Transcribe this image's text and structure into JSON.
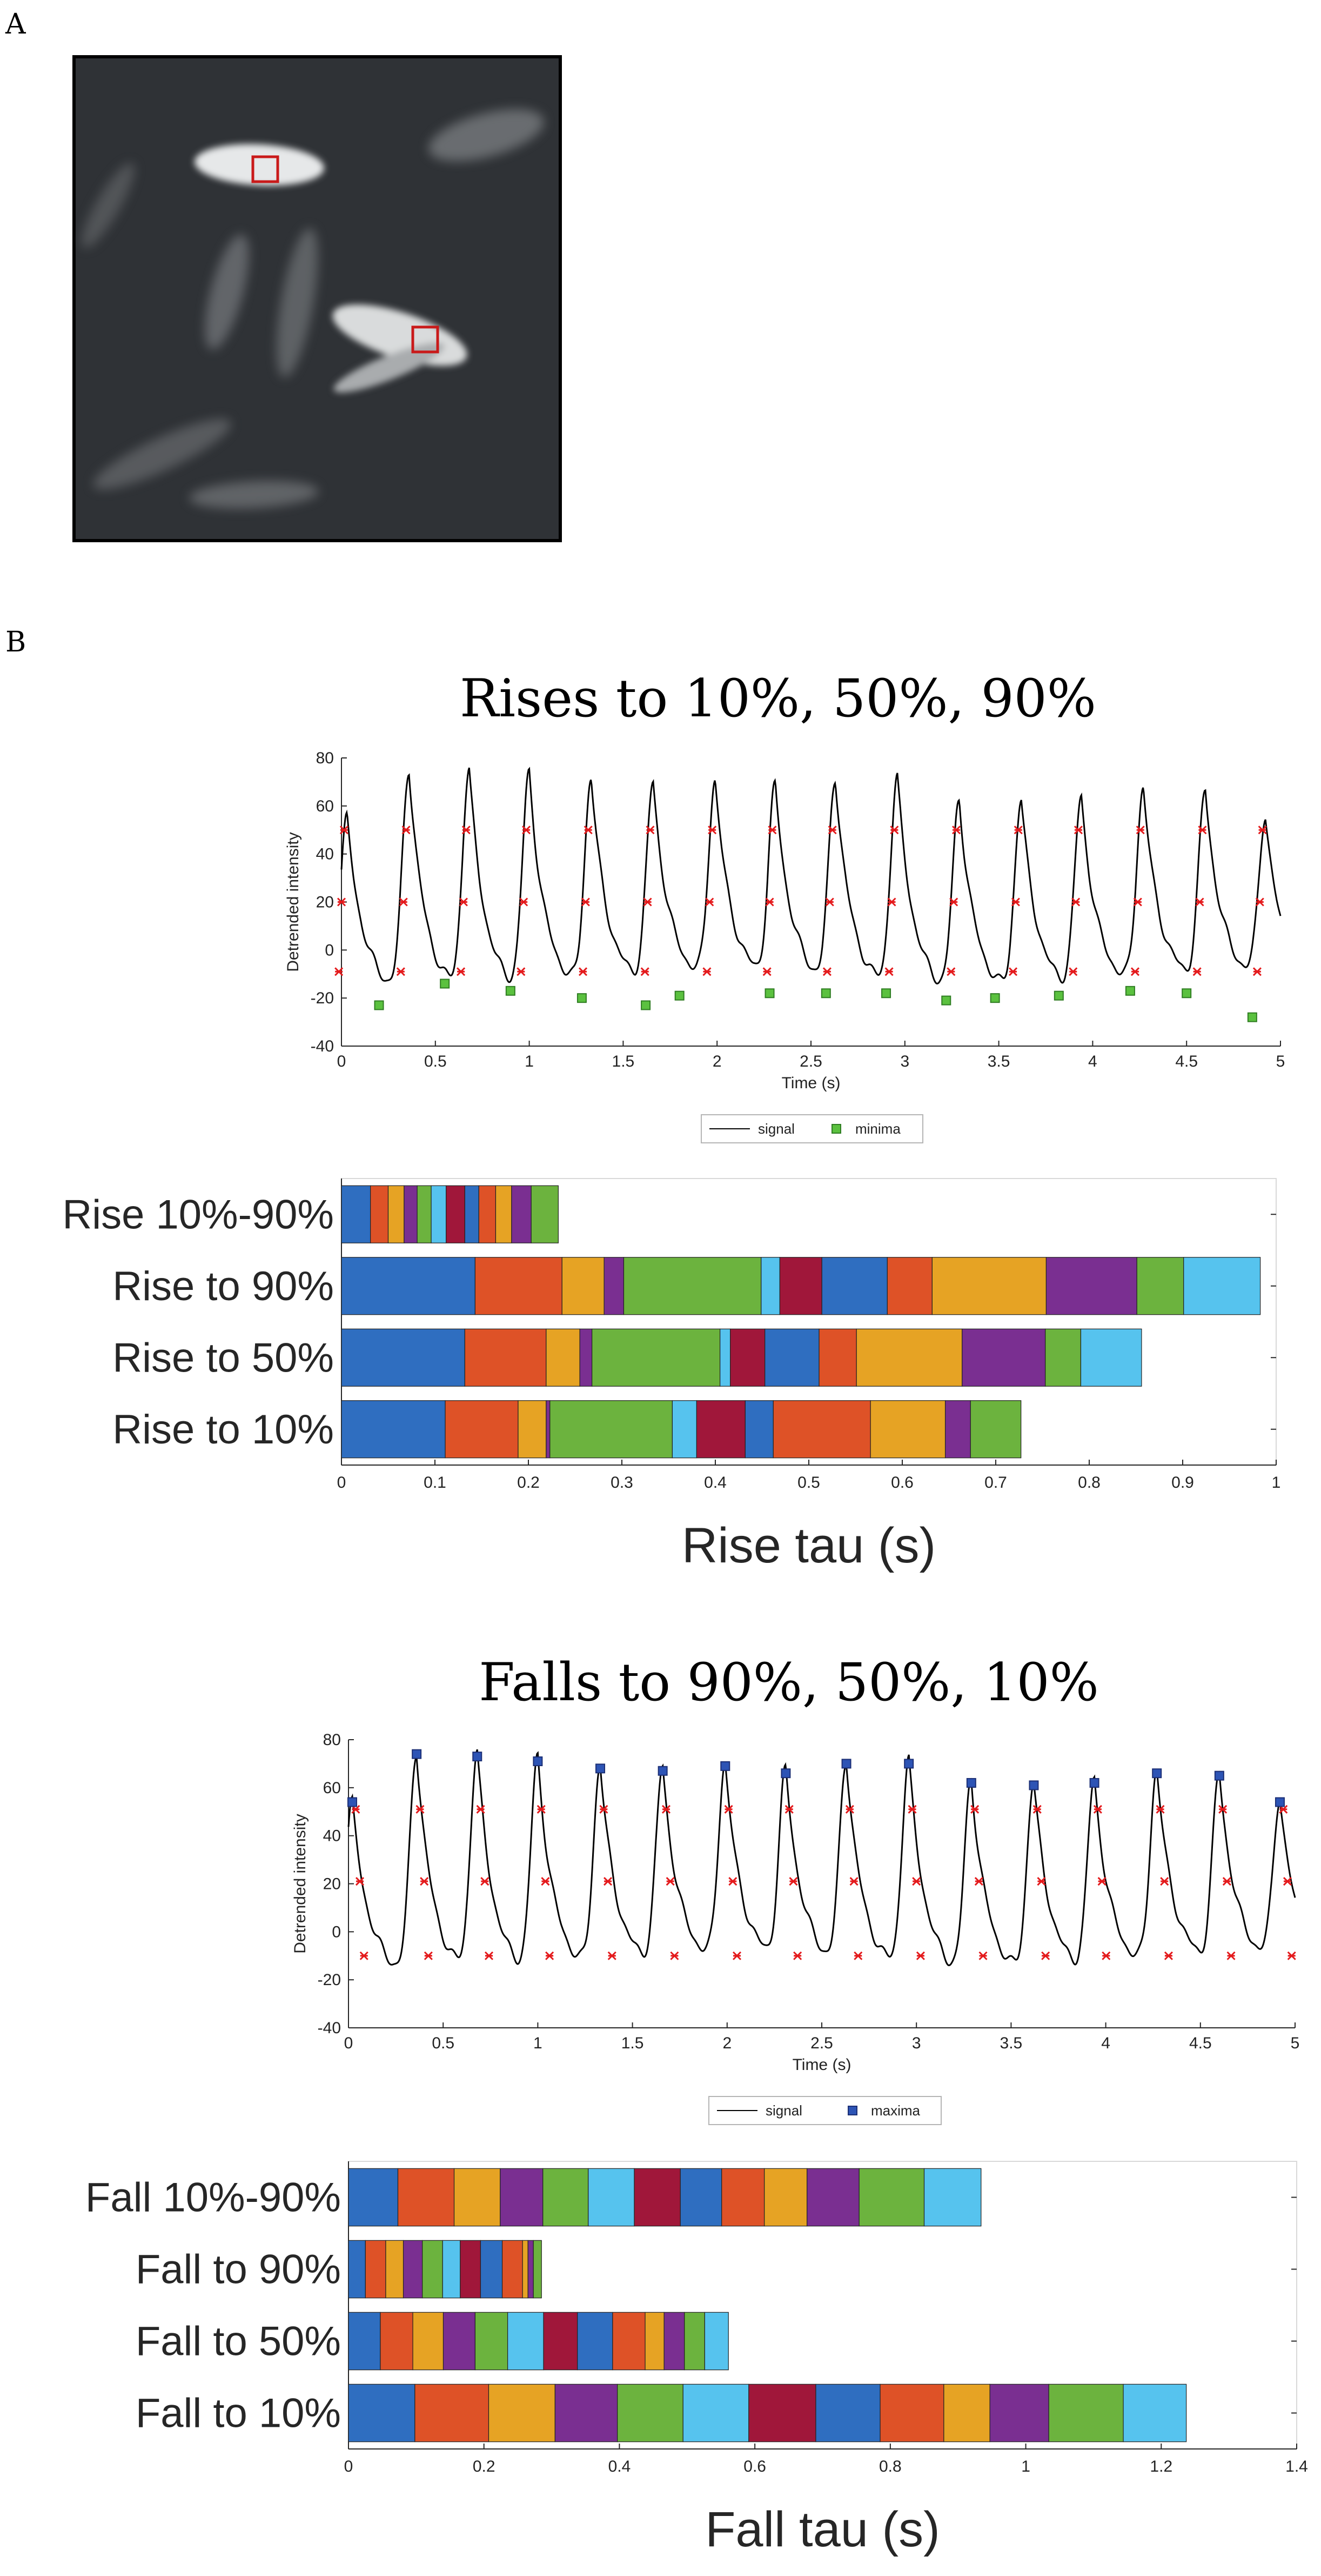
{
  "panel_a": {
    "letter": "A"
  },
  "panel_b": {
    "letter": "B"
  },
  "chart_data": [
    {
      "id": "rise-trace",
      "type": "line",
      "title": "Rises to 10%, 50%, 90%",
      "xlabel": "Time (s)",
      "ylabel": "Detrended intensity",
      "xlim": [
        0,
        5
      ],
      "ylim": [
        -40,
        80
      ],
      "xticks": [
        0,
        0.5,
        1,
        1.5,
        2,
        2.5,
        3,
        3.5,
        4,
        4.5,
        5
      ],
      "yticks": [
        -40,
        -20,
        0,
        20,
        40,
        60,
        80
      ],
      "legend": [
        "signal",
        "minima"
      ],
      "legend_position": "bottom-center",
      "peaks_t": [
        0.03,
        0.36,
        0.68,
        1.0,
        1.33,
        1.66,
        1.99,
        2.31,
        2.63,
        2.96,
        3.29,
        3.62,
        3.94,
        4.27,
        4.6,
        4.92
      ],
      "peaks_v": [
        55,
        74,
        73,
        72,
        70,
        68,
        69,
        67,
        70,
        70,
        61,
        61,
        62,
        66,
        65,
        54
      ],
      "minima_t": [
        0.2,
        0.55,
        0.9,
        1.28,
        1.62,
        1.8,
        2.28,
        2.58,
        2.9,
        3.22,
        3.48,
        3.82,
        4.2,
        4.5,
        4.85
      ],
      "minima_v": [
        -23,
        -14,
        -17,
        -20,
        -23,
        -19,
        -18,
        -18,
        -18,
        -21,
        -20,
        -19,
        -17,
        -18,
        -28
      ],
      "threshold_levels": [
        50,
        20,
        -9
      ]
    },
    {
      "id": "rise-bars",
      "type": "bar",
      "orientation": "horizontal",
      "stacked": true,
      "xlabel": "Rise tau (s)",
      "xlim": [
        0,
        1
      ],
      "xticks": [
        0,
        0.1,
        0.2,
        0.3,
        0.4,
        0.5,
        0.6,
        0.7,
        0.8,
        0.9,
        1
      ],
      "categories": [
        "Rise 10%-90%",
        "Rise to 90%",
        "Rise to 50%",
        "Rise to 10%"
      ],
      "segments": [
        [
          0.031,
          0.019,
          0.017,
          0.014,
          0.015,
          0.016,
          0.02,
          0.015,
          0.018,
          0.017,
          0.021,
          0.029
        ],
        [
          0.143,
          0.093,
          0.045,
          0.021,
          0.147,
          0.02,
          0.045,
          0.07,
          0.048,
          0.122,
          0.097,
          0.05,
          0.082
        ],
        [
          0.132,
          0.087,
          0.036,
          0.013,
          0.137,
          0.011,
          0.037,
          0.058,
          0.04,
          0.113,
          0.089,
          0.038,
          0.065
        ],
        [
          0.111,
          0.078,
          0.03,
          0.004,
          0.131,
          0.026,
          0.052,
          0.03,
          0.104,
          0.08,
          0.027,
          0.054
        ]
      ]
    },
    {
      "id": "fall-trace",
      "type": "line",
      "title": "Falls to 90%, 50%, 10%",
      "xlabel": "Time (s)",
      "ylabel": "Detrended intensity",
      "xlim": [
        0,
        5
      ],
      "ylim": [
        -40,
        80
      ],
      "xticks": [
        0,
        0.5,
        1,
        1.5,
        2,
        2.5,
        3,
        3.5,
        4,
        4.5,
        5
      ],
      "yticks": [
        -40,
        -20,
        0,
        20,
        40,
        60,
        80
      ],
      "legend": [
        "signal",
        "maxima"
      ],
      "legend_position": "bottom-center",
      "maxima_t": [
        0.02,
        0.36,
        0.68,
        1.0,
        1.33,
        1.66,
        1.99,
        2.31,
        2.63,
        2.96,
        3.29,
        3.62,
        3.94,
        4.27,
        4.6,
        4.92
      ],
      "maxima_v": [
        54,
        74,
        73,
        71,
        68,
        67,
        69,
        66,
        70,
        70,
        62,
        61,
        62,
        66,
        65,
        54
      ],
      "threshold_levels": [
        51,
        21,
        -10
      ]
    },
    {
      "id": "fall-bars",
      "type": "bar",
      "orientation": "horizontal",
      "stacked": true,
      "xlabel": "Fall tau (s)",
      "xlim": [
        0,
        1.4
      ],
      "xticks": [
        0,
        0.2,
        0.4,
        0.6,
        0.8,
        1,
        1.2,
        1.4
      ],
      "categories": [
        "Fall 10%-90%",
        "Fall to 90%",
        "Fall to 50%",
        "Fall to 10%"
      ],
      "segments": [
        [
          0.073,
          0.083,
          0.068,
          0.063,
          0.067,
          0.068,
          0.068,
          0.061,
          0.063,
          0.063,
          0.077,
          0.096,
          0.084
        ],
        [
          0.025,
          0.03,
          0.026,
          0.028,
          0.03,
          0.026,
          0.03,
          0.032,
          0.03,
          0.008,
          0.008,
          0.012
        ],
        [
          0.047,
          0.048,
          0.045,
          0.047,
          0.048,
          0.053,
          0.05,
          0.052,
          0.048,
          0.028,
          0.03,
          0.03,
          0.035
        ],
        [
          0.098,
          0.109,
          0.098,
          0.092,
          0.097,
          0.097,
          0.099,
          0.095,
          0.094,
          0.068,
          0.087,
          0.11,
          0.093
        ]
      ]
    }
  ],
  "colors": {
    "signal": "#000000",
    "threshold_marker": "#e41a1c",
    "minima_marker": "#5bc13f",
    "maxima_marker": "#2d54b5",
    "palette": [
      "#2f6ec0",
      "#de5227",
      "#e6a324",
      "#7a2f91",
      "#6cb33e",
      "#56c3ee",
      "#a0173a"
    ],
    "image_background": "#2f3236",
    "roi": "#c91a1a"
  }
}
